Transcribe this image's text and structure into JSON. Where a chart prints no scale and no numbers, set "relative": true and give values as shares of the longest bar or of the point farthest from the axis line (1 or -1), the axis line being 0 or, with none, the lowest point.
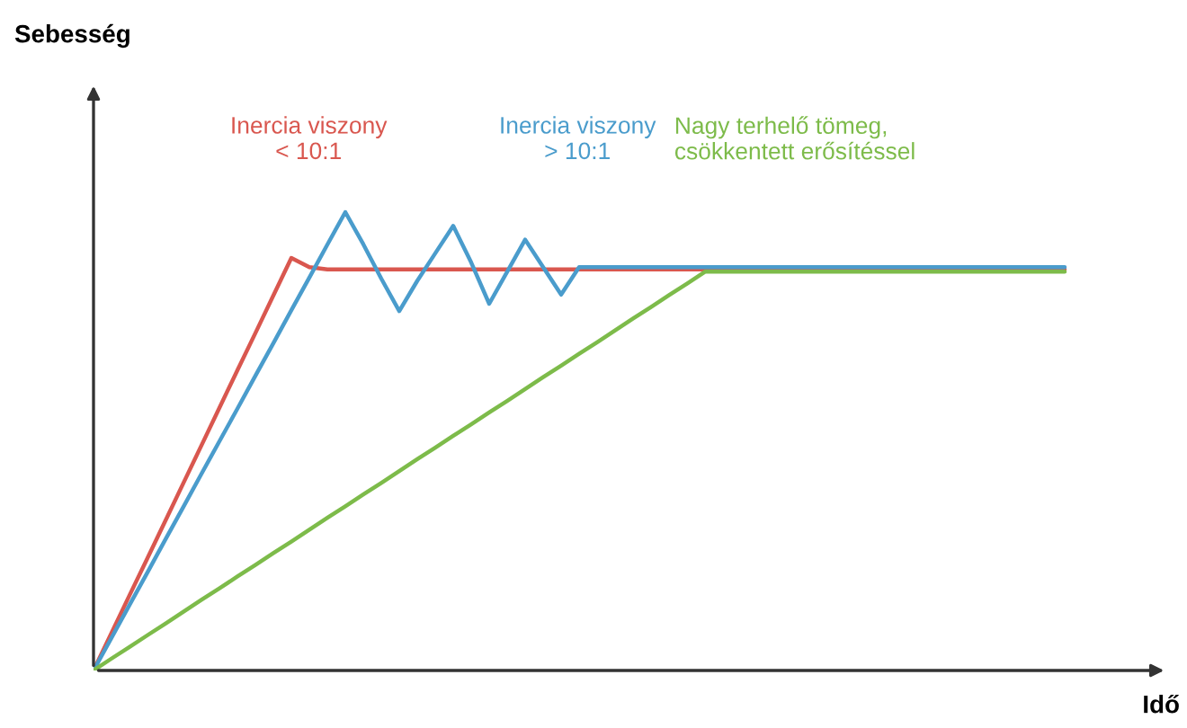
{
  "chart_data": {
    "type": "line",
    "relative": true,
    "annotations": [
      "Sebesség"
    ],
    "xlabel": "Idő",
    "legend": false,
    "categories": [
      null,
      null,
      null,
      null,
      null,
      null,
      null,
      null,
      null,
      null,
      null,
      null,
      null,
      null,
      null,
      null,
      null,
      null,
      null,
      null,
      null,
      null,
      null,
      null,
      null,
      null,
      null,
      null,
      null,
      null,
      null,
      null,
      null,
      null,
      null,
      null,
      null,
      null,
      null,
      null,
      null,
      null,
      null,
      null,
      null,
      null,
      null,
      null,
      null,
      null,
      null,
      null,
      null,
      null,
      null
    ],
    "series": [
      {
        "name": "Inercia viszony\n< 10:1",
        "color": "#d9574f",
        "values": [
          0,
          0.082,
          0.164,
          0.245,
          0.327,
          0.409,
          0.491,
          0.573,
          0.655,
          0.736,
          0.818,
          0.9,
          0.88,
          0.875,
          0.875,
          0.875,
          0.875,
          0.875,
          0.875,
          0.875,
          0.875,
          0.875,
          0.875,
          0.875,
          0.875,
          0.875,
          0.875,
          0.875,
          0.875,
          0.875,
          0.875,
          0.875,
          0.875,
          0.875,
          0.875,
          0.875,
          0.875,
          0.875,
          0.875,
          0.875,
          0.875,
          0.875,
          0.875,
          0.875,
          0.875,
          0.875,
          0.875,
          0.875,
          0.875,
          0.875,
          0.875,
          0.875,
          0.875,
          0.875,
          0.875
        ]
      },
      {
        "name": "Inercia viszony\n> 10:1",
        "color": "#4a9ccc",
        "values": [
          0,
          0.071,
          0.143,
          0.214,
          0.286,
          0.357,
          0.429,
          0.5,
          0.571,
          0.643,
          0.714,
          0.786,
          0.857,
          0.929,
          1.0,
          0.93,
          0.855,
          0.784,
          0.85,
          0.91,
          0.97,
          0.89,
          0.8,
          0.87,
          0.94,
          0.88,
          0.82,
          0.88,
          0.88,
          0.88,
          0.88,
          0.88,
          0.88,
          0.88,
          0.88,
          0.88,
          0.88,
          0.88,
          0.88,
          0.88,
          0.88,
          0.88,
          0.88,
          0.88,
          0.88,
          0.88,
          0.88,
          0.88,
          0.88,
          0.88,
          0.88,
          0.88,
          0.88,
          0.88,
          0.88
        ]
      },
      {
        "name": "Nagy terhelő tömeg,\ncsökkentett erősítéssel",
        "color": "#7dbb4a",
        "values": [
          0,
          0.026,
          0.051,
          0.077,
          0.102,
          0.128,
          0.154,
          0.179,
          0.205,
          0.23,
          0.256,
          0.281,
          0.307,
          0.333,
          0.358,
          0.384,
          0.409,
          0.435,
          0.461,
          0.486,
          0.512,
          0.537,
          0.563,
          0.588,
          0.614,
          0.64,
          0.665,
          0.691,
          0.716,
          0.742,
          0.768,
          0.793,
          0.819,
          0.844,
          0.87,
          0.87,
          0.87,
          0.87,
          0.87,
          0.87,
          0.87,
          0.87,
          0.87,
          0.87,
          0.87,
          0.87,
          0.87,
          0.87,
          0.87,
          0.87,
          0.87,
          0.87,
          0.87,
          0.87,
          0.87
        ]
      }
    ]
  }
}
